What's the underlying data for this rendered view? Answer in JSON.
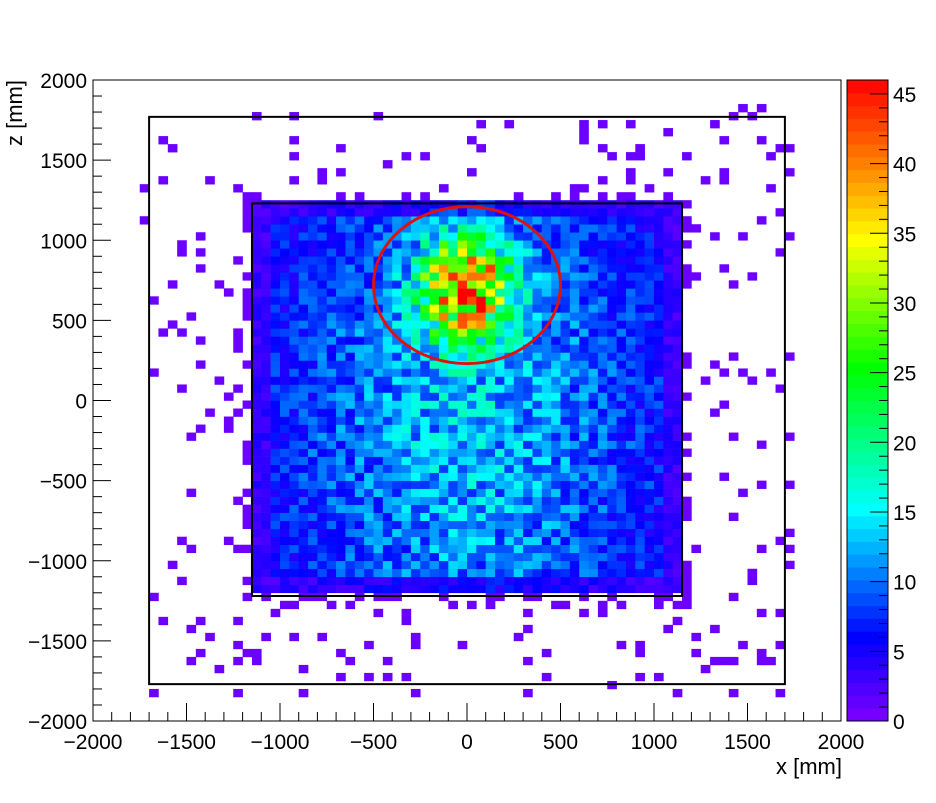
{
  "chart_data": {
    "type": "heatmap",
    "title": "",
    "xlabel": "x [mm]",
    "ylabel": "z [mm]",
    "xlim": [
      -2000,
      2000
    ],
    "ylim": [
      -2000,
      2000
    ],
    "x_ticks": [
      "−2000",
      "−1500",
      "−1000",
      "−500",
      "0",
      "500",
      "1000",
      "1500",
      "2000"
    ],
    "y_ticks": [
      "−2000",
      "−1500",
      "−1000",
      "−500",
      "0",
      "500",
      "1000",
      "1500",
      "2000"
    ],
    "colorbar": {
      "range": [
        0,
        46
      ],
      "ticks": [
        "0",
        "5",
        "10",
        "15",
        "20",
        "25",
        "30",
        "35",
        "40",
        "45"
      ],
      "palette": "rainbow (violet→blue→cyan→green→yellow→red)"
    },
    "bin_size_mm": 50,
    "populated_region": {
      "x": [
        -1150,
        1150
      ],
      "z": [
        -1200,
        1250
      ],
      "typical_count": [
        3,
        15
      ]
    },
    "hotspot": {
      "x": 0,
      "z": 700,
      "peak_count": 46
    },
    "outer_box": {
      "x": [
        -1700,
        1700
      ],
      "z": [
        -1770,
        1770
      ]
    },
    "inner_box": {
      "x": [
        -1150,
        1150
      ],
      "z": [
        -1220,
        1230
      ]
    },
    "circle": {
      "cx": 0,
      "cz": 720,
      "rx": 500,
      "rz": 490,
      "color": "#dd1111"
    },
    "grid": false,
    "legend": "none"
  }
}
